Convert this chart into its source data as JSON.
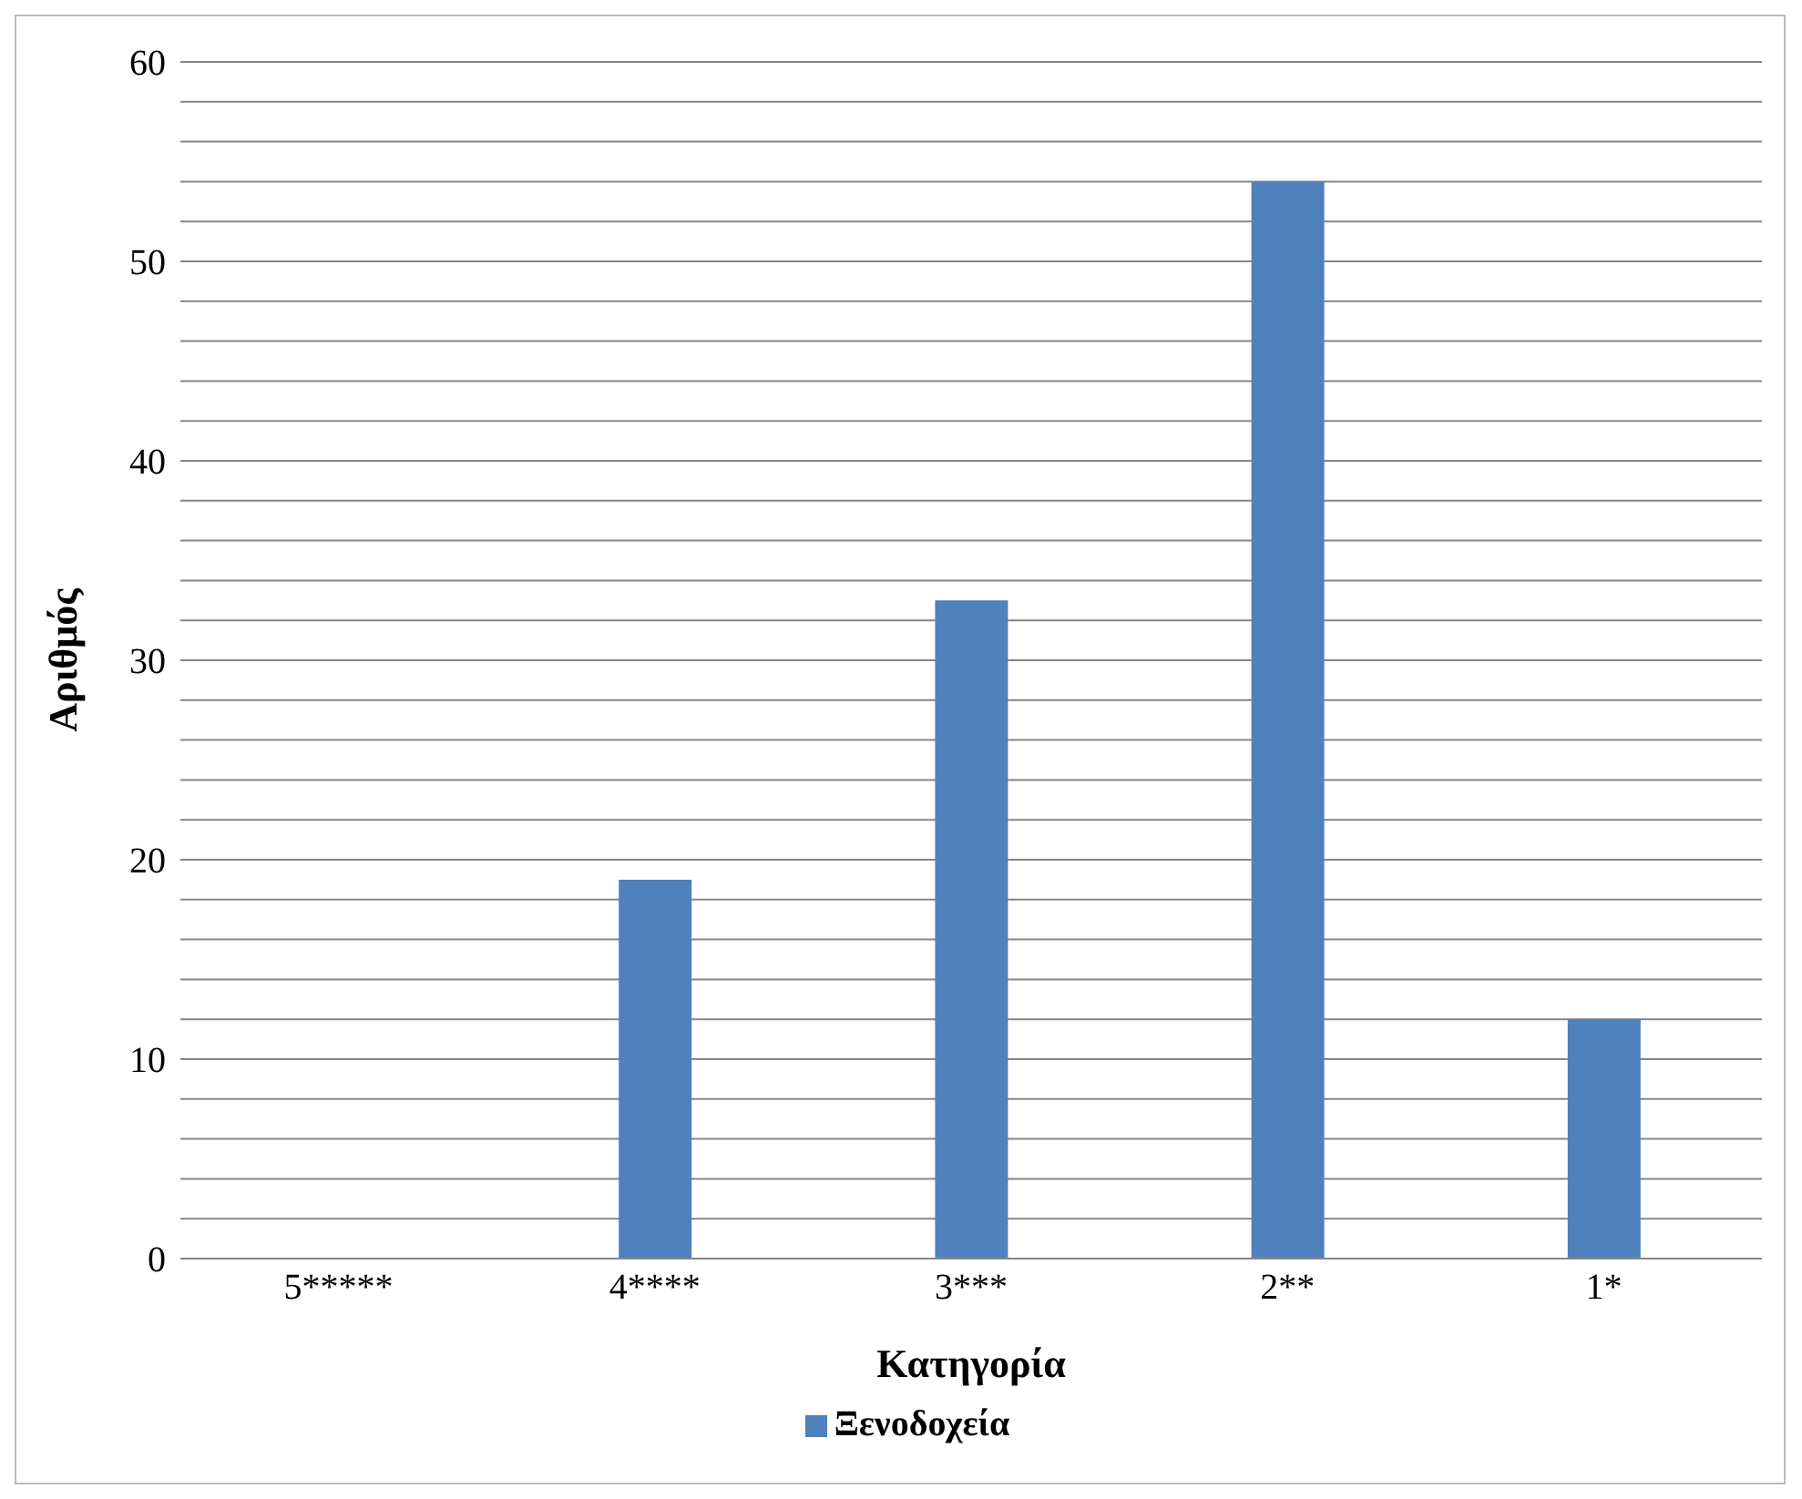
{
  "chart_data": {
    "type": "bar",
    "xlabel": "Κατηγορία",
    "ylabel": "Αριθμός",
    "categories": [
      "5*****",
      "4****",
      "3***",
      "2**",
      "1*"
    ],
    "series": [
      {
        "name": "Ξενοδοχεία",
        "color": "#4f81bd",
        "values": [
          0,
          19,
          33,
          54,
          12
        ]
      }
    ],
    "ylim": [
      0,
      60
    ],
    "yticks": [
      0,
      {
        "value": 2,
        "label": null
      },
      {
        "value": 4,
        "label": null
      },
      {
        "value": 6,
        "label": null
      },
      {
        "value": 8,
        "label": null
      },
      10,
      {
        "value": 12,
        "label": null
      },
      {
        "value": 14,
        "label": null
      },
      {
        "value": 16,
        "label": null
      },
      {
        "value": 18,
        "label": null
      },
      20,
      {
        "value": 22,
        "label": null
      },
      {
        "value": 24,
        "label": null
      },
      {
        "value": 26,
        "label": null
      },
      {
        "value": 28,
        "label": null
      },
      30,
      {
        "value": 32,
        "label": null
      },
      {
        "value": 34,
        "label": null
      },
      {
        "value": 36,
        "label": null
      },
      {
        "value": 38,
        "label": null
      },
      40,
      {
        "value": 42,
        "label": null
      },
      {
        "value": 44,
        "label": null
      },
      {
        "value": 46,
        "label": null
      },
      {
        "value": 48,
        "label": null
      },
      50,
      {
        "value": 52,
        "label": null
      },
      {
        "value": 54,
        "label": null
      },
      {
        "value": 56,
        "label": null
      },
      {
        "value": 58,
        "label": null
      },
      60
    ],
    "grid": "y",
    "legend": "bottom"
  }
}
